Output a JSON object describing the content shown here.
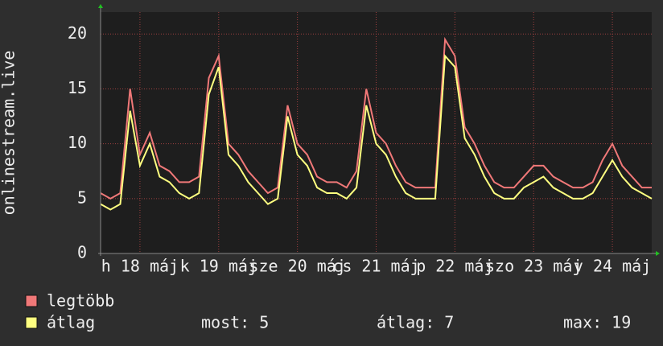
{
  "chart_data": {
    "type": "line",
    "y_label": "onlinestream.live",
    "x": [
      0,
      3,
      6,
      9,
      12,
      15,
      18,
      21,
      24,
      27,
      30,
      33,
      36,
      39,
      42,
      45,
      48,
      51,
      54,
      57,
      60,
      63,
      66,
      69,
      72,
      75,
      78,
      81,
      84,
      87,
      90,
      93,
      96,
      99,
      102,
      105,
      108,
      111,
      114,
      117,
      120,
      123,
      126,
      129,
      132,
      135,
      138,
      141,
      144,
      147,
      150,
      153,
      156,
      159,
      162,
      165,
      168
    ],
    "xlim": [
      0,
      168
    ],
    "xticks": [
      {
        "value": 12,
        "label": "h 18 máj"
      },
      {
        "value": 36,
        "label": "k 19 máj"
      },
      {
        "value": 60,
        "label": "sze 20 máj"
      },
      {
        "value": 84,
        "label": "cs 21 máj"
      },
      {
        "value": 108,
        "label": "p 22 máj"
      },
      {
        "value": 132,
        "label": "szo 23 máj"
      },
      {
        "value": 156,
        "label": "v 24 máj"
      }
    ],
    "ylim": [
      0,
      22
    ],
    "yticks": [
      0,
      5,
      10,
      15,
      20
    ],
    "grid": true,
    "series": [
      {
        "name": "legtöbb",
        "color": "#f07878",
        "values": [
          5.5,
          5,
          5.5,
          15,
          9,
          11,
          8,
          7.5,
          6.5,
          6.5,
          7,
          16,
          18,
          10,
          9,
          7.5,
          6.5,
          5.5,
          6,
          13.5,
          10,
          9,
          7,
          6.5,
          6.5,
          6,
          7.5,
          15,
          11,
          10,
          8,
          6.5,
          6,
          6,
          6,
          19.5,
          18,
          11.5,
          10,
          8,
          6.5,
          6,
          6,
          7,
          8,
          8,
          7,
          6.5,
          6,
          6,
          6.5,
          8.5,
          10,
          8,
          7,
          6,
          6
        ]
      },
      {
        "name": "átlag",
        "color": "#ffff80",
        "values": [
          4.5,
          4,
          4.5,
          13,
          8,
          10,
          7,
          6.5,
          5.5,
          5,
          5.5,
          14.5,
          17,
          9,
          8,
          6.5,
          5.5,
          4.5,
          5,
          12.5,
          9,
          8,
          6,
          5.5,
          5.5,
          5,
          6,
          13.5,
          10,
          9,
          7,
          5.5,
          5,
          5,
          5,
          18,
          17,
          10.5,
          9,
          7,
          5.5,
          5,
          5,
          6,
          6.5,
          7,
          6,
          5.5,
          5,
          5,
          5.5,
          7,
          8.5,
          7,
          6,
          5.5,
          5
        ]
      }
    ],
    "stats": [
      {
        "label": "most:",
        "value": 5
      },
      {
        "label": "átlag:",
        "value": 7
      },
      {
        "label": "max:",
        "value": 19
      }
    ]
  }
}
